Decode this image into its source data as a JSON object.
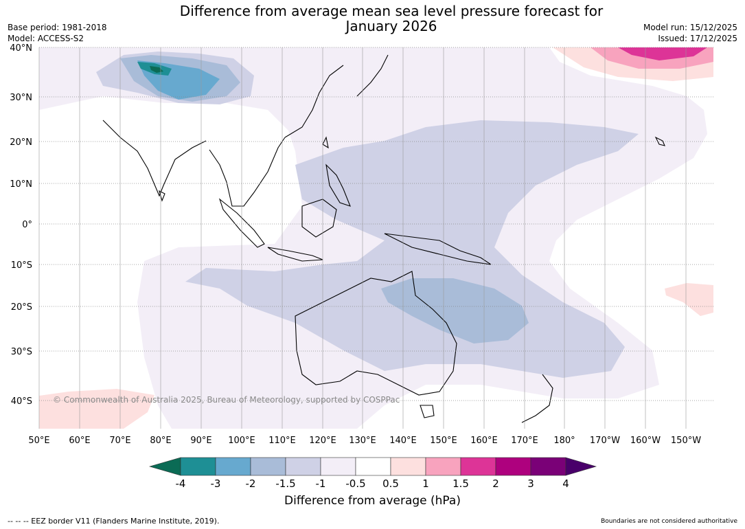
{
  "title_line1": "Difference from average mean sea level pressure forecast for",
  "title_line2": "January 2026",
  "base_period": "Base period: 1981-2018",
  "model": "Model: ACCESS-S2",
  "model_run": "Model run: 15/12/2025",
  "issued": "Issued: 17/12/2025",
  "copyright": "© Commonwealth of Australia 2025, Bureau of Meteorology, supported by COSPPac",
  "lat_labels": [
    "40°N",
    "30°N",
    "20°N",
    "10°N",
    "0°",
    "10°S",
    "20°S",
    "30°S",
    "40°S"
  ],
  "lon_labels": [
    "50°E",
    "60°E",
    "70°E",
    "80°E",
    "90°E",
    "100°E",
    "110°E",
    "120°E",
    "130°E",
    "140°E",
    "150°E",
    "160°E",
    "170°E",
    "180°",
    "170°W",
    "160°W",
    "150°W"
  ],
  "colorbar": {
    "title": "Difference from average (hPa)",
    "ticks": [
      "-4",
      "-3",
      "-2",
      "-1.5",
      "-1",
      "-0.5",
      "0.5",
      "1",
      "1.5",
      "2",
      "3",
      "4"
    ],
    "colors": {
      "below_min": "#0b6b55",
      "bins": [
        "#1e8f95",
        "#67a9cf",
        "#a9bcd8",
        "#cfd1e6",
        "#f3eef7",
        "#ffffff",
        "#fde0df",
        "#f8a3be",
        "#dd3497",
        "#ae017e",
        "#7a0177"
      ],
      "above_max": "#49006a"
    }
  },
  "footer_left": "--  --  -- EEZ border V11 (Flanders Marine Institute, 2019).",
  "footer_right": "Boundaries are not considered authoritative"
}
